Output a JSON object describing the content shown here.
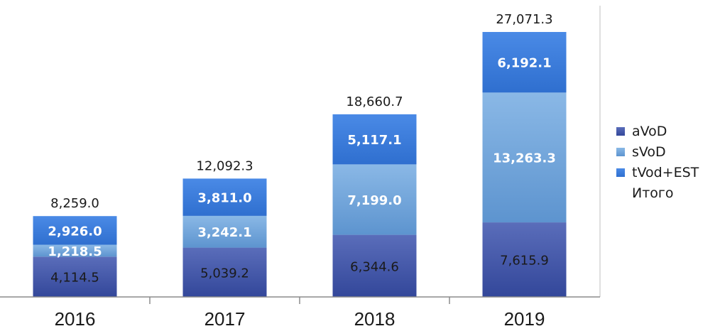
{
  "chart_data": {
    "type": "bar",
    "stacked": true,
    "categories": [
      "2016",
      "2017",
      "2018",
      "2019"
    ],
    "series": [
      {
        "name": "aVoD",
        "values": [
          4114.5,
          5039.2,
          6344.6,
          7615.9
        ],
        "labels": [
          "4,114.5",
          "5,039.2",
          "6,344.6",
          "7,615.9"
        ],
        "color": "#3f55a8",
        "label_color": "#1a1a1a"
      },
      {
        "name": "sVoD",
        "values": [
          1218.5,
          3242.1,
          7199.0,
          13263.3
        ],
        "labels": [
          "1,218.5",
          "3,242.1",
          "7,199.0",
          "13,263.3"
        ],
        "color": "#6fa3d9",
        "label_color": "#ffffff"
      },
      {
        "name": "tVod+EST",
        "values": [
          2926.0,
          3811.0,
          5117.1,
          6192.1
        ],
        "labels": [
          "2,926.0",
          "3,811.0",
          "5,117.1",
          "6,192.1"
        ],
        "color": "#3a7ede",
        "label_color": "#ffffff"
      }
    ],
    "totals": {
      "name": "Итого",
      "values": [
        8259.0,
        12092.3,
        18660.7,
        27071.3
      ],
      "labels": [
        "8,259.0",
        "12,092.3",
        "18,660.7",
        "27,071.3"
      ]
    },
    "ylim": [
      0,
      27071.3
    ],
    "grid": false,
    "legend": "right",
    "title": "",
    "xlabel": "",
    "ylabel": ""
  }
}
